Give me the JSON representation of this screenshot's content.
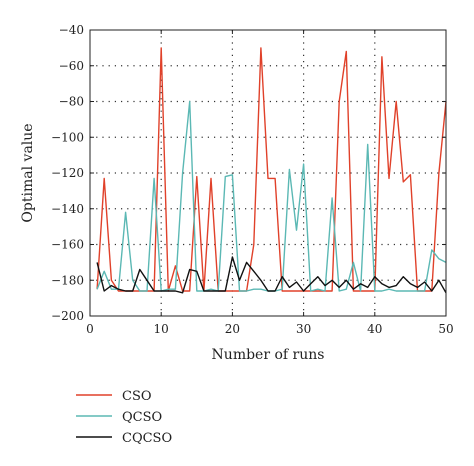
{
  "chart_data": {
    "type": "line",
    "xlabel": "Number of runs",
    "ylabel": "Optimal value",
    "xlim": [
      0,
      50
    ],
    "ylim": [
      -200,
      -40
    ],
    "xticks": [
      0,
      10,
      20,
      30,
      40,
      50
    ],
    "yticks": [
      -200,
      -180,
      -160,
      -140,
      -120,
      -100,
      -80,
      -60,
      -40
    ],
    "grid": true,
    "legend_position": "below",
    "x": [
      1,
      2,
      3,
      4,
      5,
      6,
      7,
      8,
      9,
      10,
      11,
      12,
      13,
      14,
      15,
      16,
      17,
      18,
      19,
      20,
      21,
      22,
      23,
      24,
      25,
      26,
      27,
      28,
      29,
      30,
      31,
      32,
      33,
      34,
      35,
      36,
      37,
      38,
      39,
      40,
      41,
      42,
      43,
      44,
      45,
      46,
      47,
      48,
      49,
      50
    ],
    "series": [
      {
        "name": "CSO",
        "color": "#e0412a",
        "values": [
          -185,
          -123,
          -180,
          -186,
          -186,
          -186,
          -186,
          -186,
          -186,
          -50,
          -186,
          -172,
          -186,
          -186,
          -122,
          -186,
          -123,
          -186,
          -186,
          -186,
          -186,
          -186,
          -160,
          -50,
          -123,
          -123,
          -186,
          -186,
          -186,
          -186,
          -186,
          -186,
          -186,
          -186,
          -80,
          -52,
          -186,
          -186,
          -186,
          -186,
          -55,
          -123,
          -80,
          -125,
          -121,
          -186,
          -186,
          -186,
          -120,
          -80
        ]
      },
      {
        "name": "QCSO",
        "color": "#5bb8b4",
        "values": [
          -185,
          -175,
          -185,
          -185,
          -142,
          -180,
          -186,
          -186,
          -123,
          -186,
          -185,
          -185,
          -120,
          -80,
          -186,
          -186,
          -185,
          -186,
          -122,
          -121,
          -186,
          -186,
          -185,
          -185,
          -186,
          -186,
          -185,
          -118,
          -152,
          -115,
          -186,
          -185,
          -186,
          -134,
          -186,
          -185,
          -170,
          -186,
          -104,
          -186,
          -186,
          -185,
          -186,
          -186,
          -186,
          -186,
          -186,
          -163,
          -168,
          -170
        ]
      },
      {
        "name": "CQCSO",
        "color": "#111111",
        "values": [
          -170,
          -186,
          -183,
          -185,
          -186,
          -186,
          -174,
          -180,
          -186,
          -186,
          -186,
          -186,
          -187,
          -174,
          -175,
          -186,
          -186,
          -186,
          -186,
          -167,
          -180,
          -170,
          -175,
          -180,
          -186,
          -186,
          -178,
          -184,
          -181,
          -186,
          -182,
          -178,
          -183,
          -180,
          -184,
          -180,
          -185,
          -182,
          -184,
          -178,
          -182,
          -184,
          -183,
          -178,
          -182,
          -184,
          -181,
          -186,
          -180,
          -187
        ]
      }
    ]
  }
}
